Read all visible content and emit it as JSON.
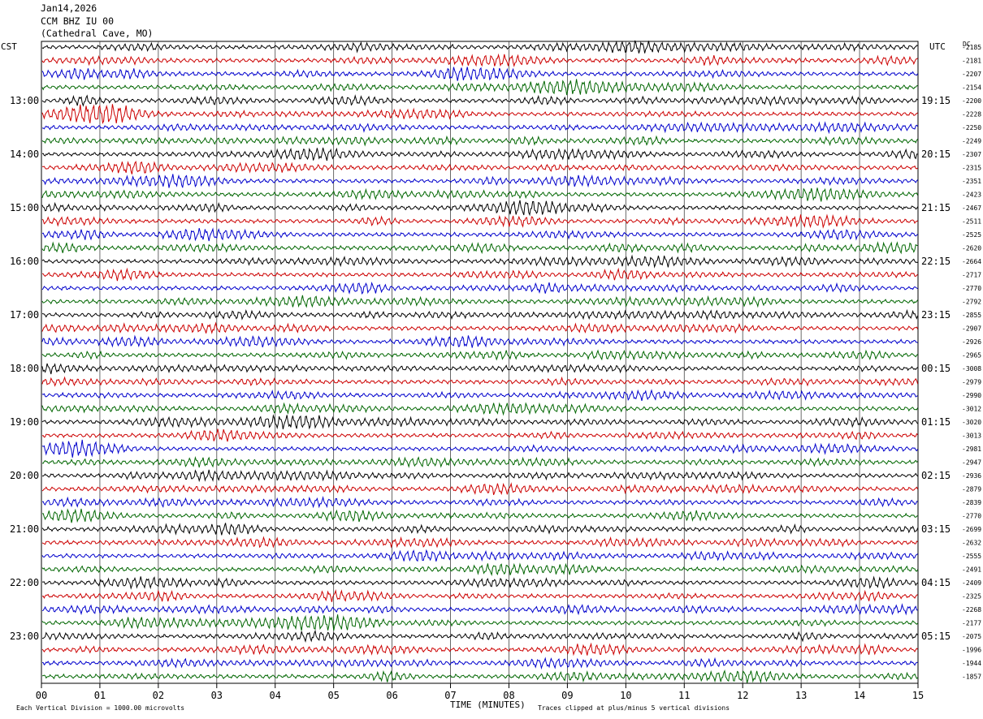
{
  "header": {
    "date": "Jan14,2026",
    "station": "CCM BHZ IU 00",
    "location": "(Cathedral Cave, MO)"
  },
  "left_label": "CST",
  "right_label": "UTC",
  "dc_label": "DC",
  "footer": {
    "scale_note": "Each Vertical Division = 1000.00 microvolts",
    "clip_note": "Traces clipped at plus/minus 5 vertical divisions"
  },
  "colors": {
    "trace_cycle": [
      "#000000",
      "#cc0000",
      "#0000cc",
      "#006600"
    ],
    "grid": "#000000"
  },
  "chart_data": {
    "type": "line",
    "xlabel": "TIME (MINUTES)",
    "x_ticks": [
      "00",
      "01",
      "02",
      "03",
      "04",
      "05",
      "06",
      "07",
      "08",
      "09",
      "10",
      "11",
      "12",
      "13",
      "14",
      "15"
    ],
    "x_range": [
      0,
      15
    ],
    "rows_per_hour": 4,
    "left_hour_labels": [
      "13:00",
      "14:00",
      "15:00",
      "16:00",
      "17:00",
      "18:00",
      "19:00",
      "20:00",
      "21:00",
      "22:00",
      "23:00"
    ],
    "right_hour_labels": [
      "19:15",
      "20:15",
      "21:15",
      "22:15",
      "23:15",
      "00:15",
      "01:15",
      "02:15",
      "03:15",
      "04:15",
      "05:15"
    ],
    "dc_offsets": [
      "-2185",
      "-2181",
      "-2207",
      "-2154",
      "-2200",
      "-2228",
      "-2250",
      "-2249",
      "-2307",
      "-2315",
      "-2351",
      "-2423",
      "-2467",
      "-2511",
      "-2525",
      "-2620",
      "-2664",
      "-2717",
      "-2770",
      "-2792",
      "-2855",
      "-2907",
      "-2926",
      "-2965",
      "-3008",
      "-2979",
      "-2990",
      "-3012",
      "-3020",
      "-3013",
      "-2981",
      "-2947",
      "-2936",
      "-2879",
      "-2839",
      "-2770",
      "-2699",
      "-2632",
      "-2555",
      "-2491",
      "-2409",
      "-2325",
      "-2268",
      "-2177",
      "-2075",
      "-1996",
      "-1944",
      "-1857"
    ]
  }
}
